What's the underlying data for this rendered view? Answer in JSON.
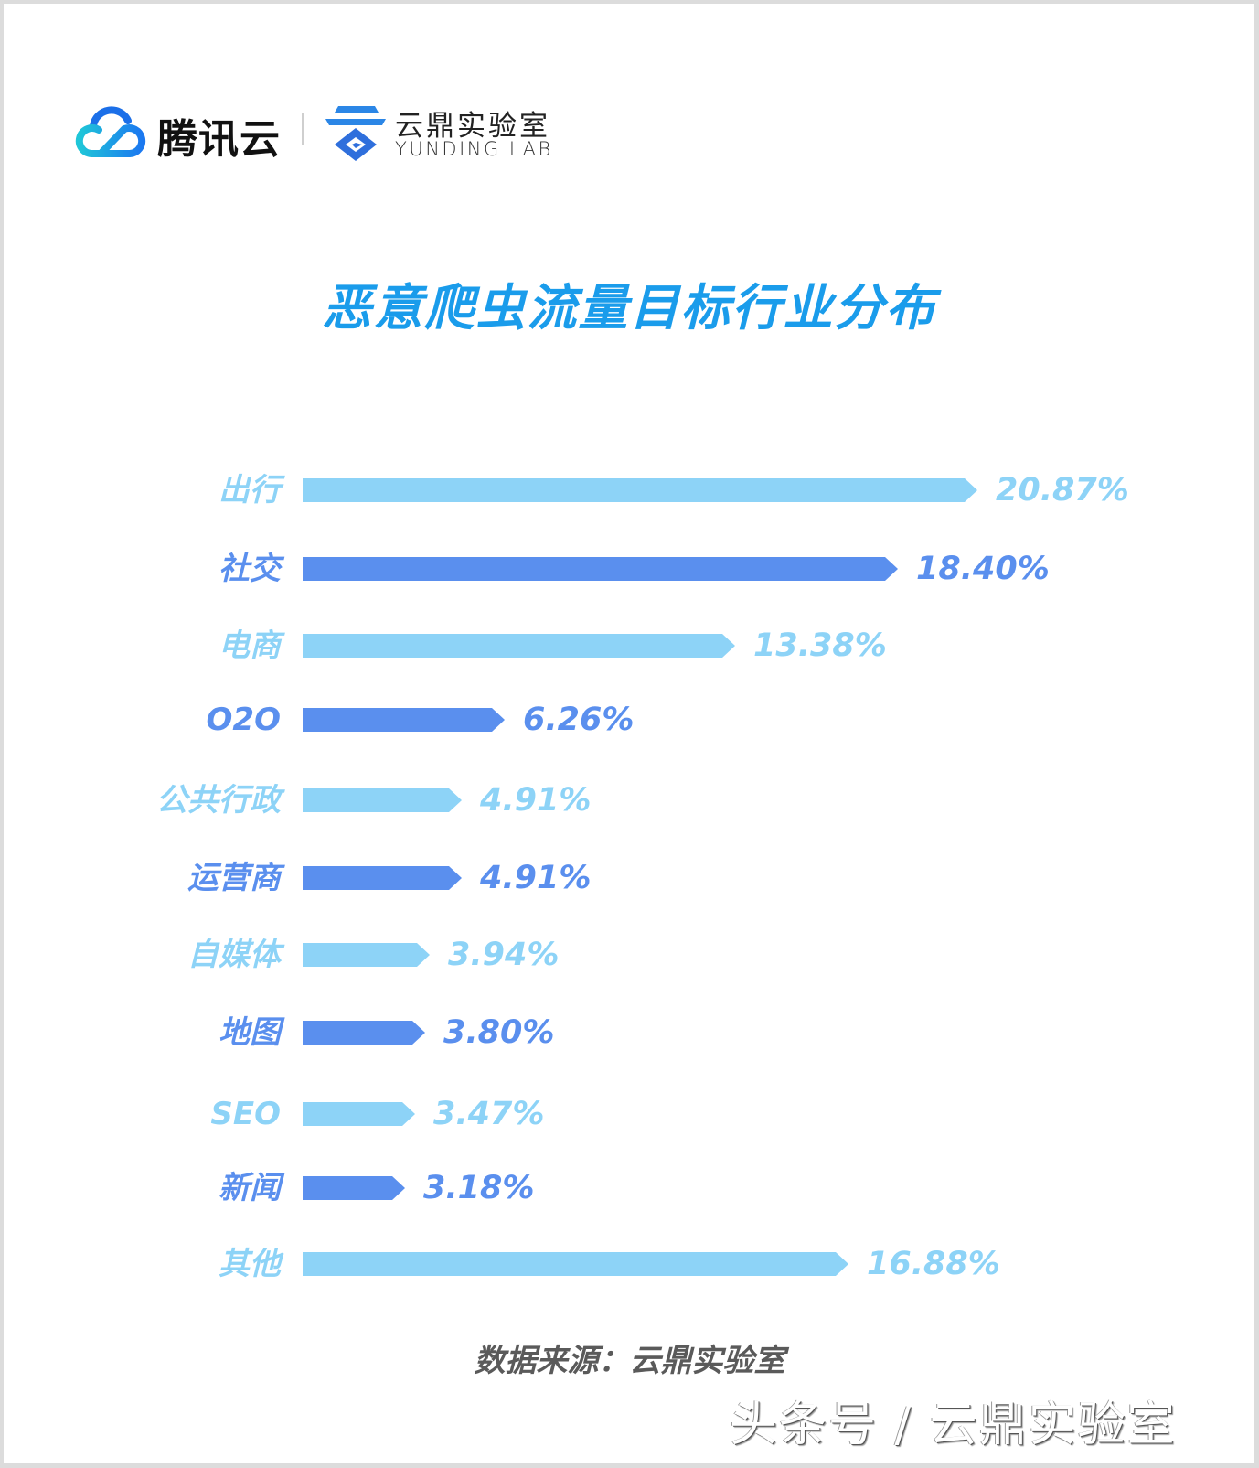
{
  "header": {
    "brand_tencent": "腾讯云",
    "brand_yunding_cn": "云鼎实验室",
    "brand_yunding_en": "YUNDING LAB",
    "icons": [
      "tencent-cloud-logo-icon",
      "yunding-lab-logo-icon"
    ]
  },
  "title": "恶意爬虫流量目标行业分布",
  "colors": {
    "title": "#1a9ceb",
    "bar_light": "#8dd3f7",
    "bar_dark": "#5a8fee",
    "source_text": "#5a5a5a"
  },
  "rows": [
    {
      "label": "出行",
      "value_text": "20.87%",
      "value": 20.87,
      "tone": "light"
    },
    {
      "label": "社交",
      "value_text": "18.40%",
      "value": 18.4,
      "tone": "dark"
    },
    {
      "label": "电商",
      "value_text": "13.38%",
      "value": 13.38,
      "tone": "light"
    },
    {
      "label": "O2O",
      "value_text": "6.26%",
      "value": 6.26,
      "tone": "dark"
    },
    {
      "label": "公共行政",
      "value_text": "4.91%",
      "value": 4.91,
      "tone": "light"
    },
    {
      "label": "运营商",
      "value_text": "4.91%",
      "value": 4.91,
      "tone": "dark"
    },
    {
      "label": "自媒体",
      "value_text": "3.94%",
      "value": 3.94,
      "tone": "light"
    },
    {
      "label": "地图",
      "value_text": "3.80%",
      "value": 3.8,
      "tone": "dark"
    },
    {
      "label": "SEO",
      "value_text": "3.47%",
      "value": 3.47,
      "tone": "light"
    },
    {
      "label": "新闻",
      "value_text": "3.18%",
      "value": 3.18,
      "tone": "dark"
    },
    {
      "label": "其他",
      "value_text": "16.88%",
      "value": 16.88,
      "tone": "light"
    }
  ],
  "source": "数据来源：云鼎实验室",
  "watermark": "头条号 / 云鼎实验室",
  "chart_data": {
    "type": "bar",
    "orientation": "horizontal",
    "title": "恶意爬虫流量目标行业分布",
    "categories": [
      "出行",
      "社交",
      "电商",
      "O2O",
      "公共行政",
      "运营商",
      "自媒体",
      "地图",
      "SEO",
      "新闻",
      "其他"
    ],
    "values": [
      20.87,
      18.4,
      13.38,
      6.26,
      4.91,
      4.91,
      3.94,
      3.8,
      3.47,
      3.18,
      16.88
    ],
    "value_labels": [
      "20.87%",
      "18.40%",
      "13.38%",
      "6.26%",
      "4.91%",
      "4.91%",
      "3.94%",
      "3.80%",
      "3.47%",
      "3.18%",
      "16.88%"
    ],
    "unit": "%",
    "xlabel": "",
    "ylabel": "",
    "grid": false,
    "legend": null,
    "bar_colors_alternating": [
      "#8dd3f7",
      "#5a8fee"
    ],
    "annotation": "数据来源：云鼎实验室"
  }
}
